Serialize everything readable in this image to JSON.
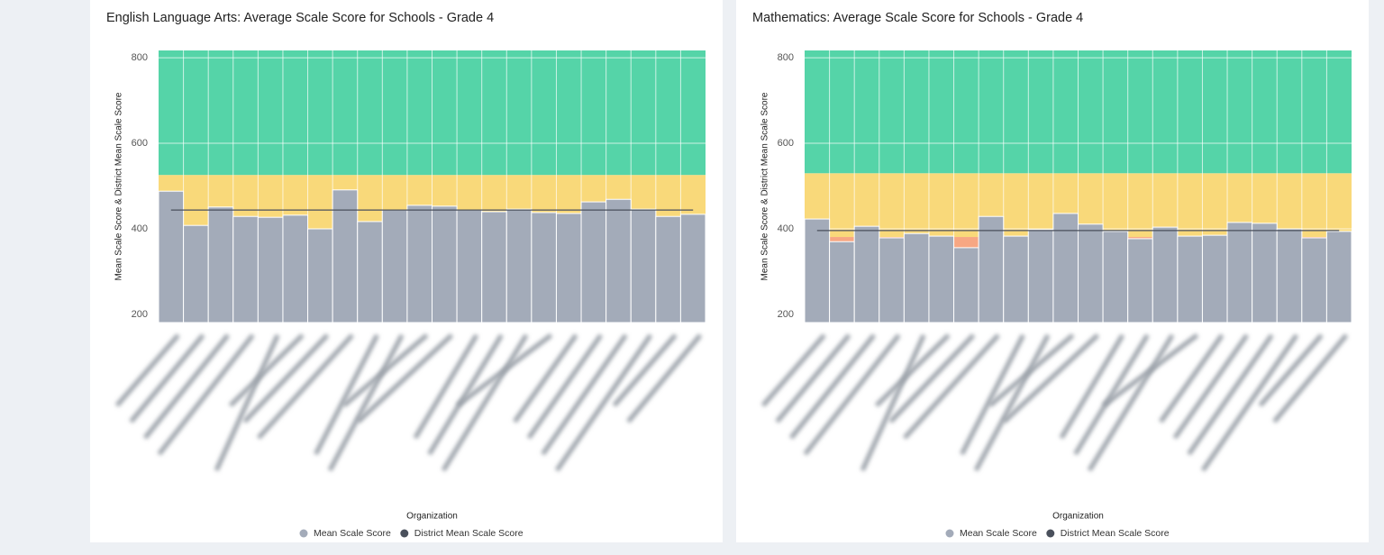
{
  "chart_data": [
    {
      "type": "bar",
      "title": "English Language Arts: Average Scale Score for Schools - Grade 4",
      "x_label": "Organization",
      "y_label": "Mean Scale Score & District Mean Scale Score",
      "categories": [
        null,
        null,
        null,
        null,
        null,
        null,
        null,
        null,
        null,
        null,
        null,
        null,
        null,
        null,
        null,
        null,
        null,
        null,
        null,
        null,
        null,
        null
      ],
      "series": [
        {
          "name": "Mean Scale Score",
          "color": "#a3abb9",
          "values": [
            488,
            408,
            451,
            429,
            427,
            432,
            400,
            491,
            417,
            444,
            455,
            453,
            444,
            440,
            446,
            438,
            436,
            463,
            469,
            446,
            429,
            434
          ]
        }
      ],
      "reference_lines": [
        {
          "name": "District Mean Scale Score",
          "color": "#4a505c",
          "value": 444
        }
      ],
      "bands": [
        {
          "from": 181,
          "to": 526,
          "color": "#f9d97a"
        },
        {
          "from": 526,
          "to": 817,
          "color": "#55d4a8"
        }
      ],
      "ylim": [
        181,
        817
      ],
      "yticks": [
        200,
        400,
        600,
        800
      ],
      "grid": true
    },
    {
      "type": "bar",
      "title": "Mathematics: Average Scale Score for Schools - Grade 4",
      "x_label": "Organization",
      "y_label": "Mean Scale Score & District Mean Scale Score",
      "categories": [
        null,
        null,
        null,
        null,
        null,
        null,
        null,
        null,
        null,
        null,
        null,
        null,
        null,
        null,
        null,
        null,
        null,
        null,
        null,
        null,
        null,
        null
      ],
      "series": [
        {
          "name": "Mean Scale Score",
          "color": "#a3abb9",
          "values": [
            423,
            370,
            406,
            379,
            389,
            383,
            356,
            429,
            383,
            398,
            436,
            411,
            394,
            377,
            404,
            383,
            385,
            415,
            413,
            400,
            379,
            394
          ]
        }
      ],
      "reference_lines": [
        {
          "name": "District Mean Scale Score",
          "color": "#4a505c",
          "value": 396
        }
      ],
      "bands": [
        {
          "from": 181,
          "to": 381,
          "color": "#f7a783"
        },
        {
          "from": 381,
          "to": 530,
          "color": "#f9d97a"
        },
        {
          "from": 530,
          "to": 817,
          "color": "#55d4a8"
        }
      ],
      "ylim": [
        181,
        817
      ],
      "yticks": [
        200,
        400,
        600,
        800
      ],
      "grid": true
    }
  ]
}
